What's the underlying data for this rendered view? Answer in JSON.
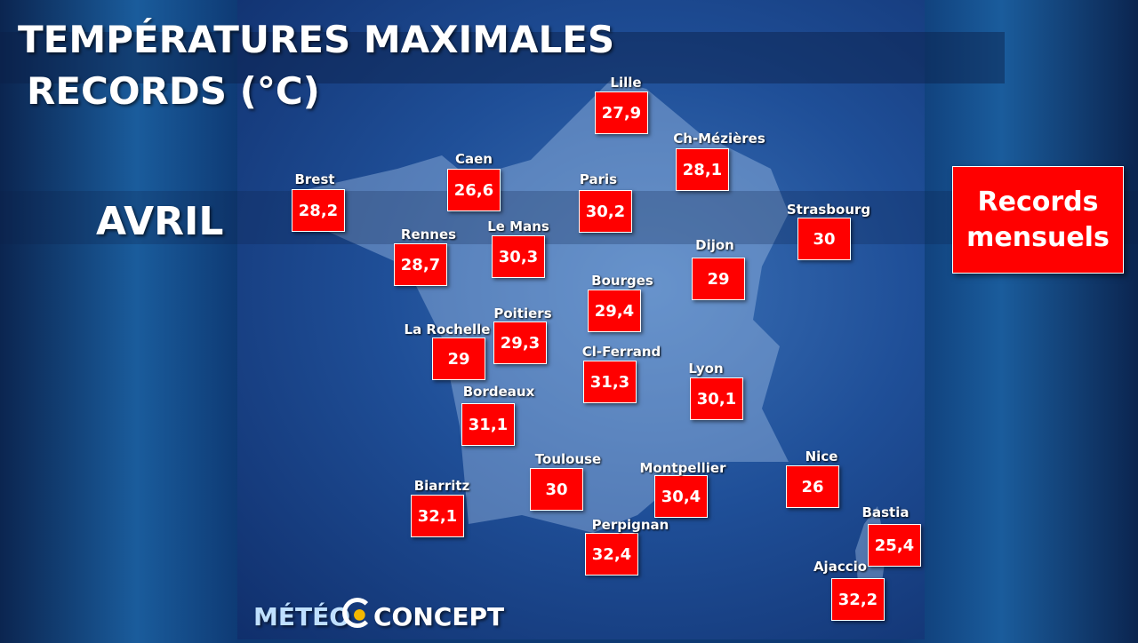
{
  "header": {
    "title_line1": "TEMPÉRATURES MAXIMALES",
    "title_line2": "RECORDS (°C)",
    "month": "AVRIL"
  },
  "badge": {
    "line1": "Records",
    "line2": "mensuels"
  },
  "cities": [
    {
      "name": "Lille",
      "value": "27,9"
    },
    {
      "name": "Ch-Mézières",
      "value": "28,1"
    },
    {
      "name": "Caen",
      "value": "26,6"
    },
    {
      "name": "Paris",
      "value": "30,2"
    },
    {
      "name": "Brest",
      "value": "28,2"
    },
    {
      "name": "Strasbourg",
      "value": "30"
    },
    {
      "name": "Le Mans",
      "value": "30,3"
    },
    {
      "name": "Rennes",
      "value": "28,7"
    },
    {
      "name": "Dijon",
      "value": "29"
    },
    {
      "name": "Bourges",
      "value": "29,4"
    },
    {
      "name": "Poitiers",
      "value": "29,3"
    },
    {
      "name": "La Rochelle",
      "value": "29"
    },
    {
      "name": "Cl-Ferrand",
      "value": "31,3"
    },
    {
      "name": "Lyon",
      "value": "30,1"
    },
    {
      "name": "Bordeaux",
      "value": "31,1"
    },
    {
      "name": "Toulouse",
      "value": "30"
    },
    {
      "name": "Montpellier",
      "value": "30,4"
    },
    {
      "name": "Nice",
      "value": "26"
    },
    {
      "name": "Biarritz",
      "value": "32,1"
    },
    {
      "name": "Bastia",
      "value": "25,4"
    },
    {
      "name": "Perpignan",
      "value": "32,4"
    },
    {
      "name": "Ajaccio",
      "value": "32,2"
    }
  ],
  "logo": {
    "part1": "MÉTÉO",
    "part2": "CONCEPT"
  }
}
